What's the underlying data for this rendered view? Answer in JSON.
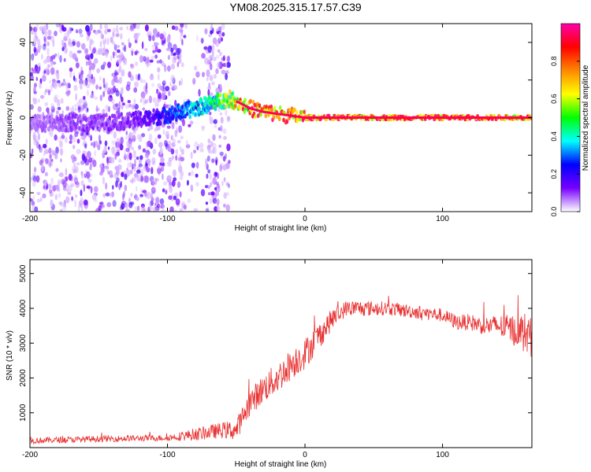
{
  "figure": {
    "title": "YM08.2025.315.17.57.C39"
  },
  "chart_data": [
    {
      "type": "heatmap",
      "xlabel": "Height of straight line (km)",
      "ylabel": "Frequency (Hz)",
      "xlim": [
        -200,
        165
      ],
      "ylim": [
        -50,
        50
      ],
      "xticks": [
        -200,
        -100,
        0,
        100
      ],
      "yticks": [
        -40,
        -20,
        0,
        20,
        40
      ],
      "grid": false,
      "colorbar": {
        "label": "Normalized spectral amplitude",
        "range": [
          0,
          1
        ],
        "ticks": [
          "0.0",
          "0.2",
          "0.4",
          "0.6",
          "0.8"
        ],
        "colors": [
          "#ffffff",
          "#7700ff",
          "#0000ff",
          "#00ffff",
          "#00ff00",
          "#ffff00",
          "#ff8800",
          "#ff0000",
          "#ff00aa"
        ]
      },
      "ridge": {
        "x": [
          -200,
          -160,
          -130,
          -110,
          -90,
          -75,
          -62,
          -55,
          -48,
          -40,
          -30,
          -20,
          -10,
          0,
          50,
          100,
          150,
          165
        ],
        "y": [
          -3,
          -3,
          -2,
          0,
          3,
          6,
          9,
          10,
          8,
          5,
          3,
          2,
          1,
          0,
          0,
          0,
          0,
          0
        ],
        "amplitude": [
          0.08,
          0.12,
          0.12,
          0.2,
          0.35,
          0.45,
          0.55,
          0.7,
          0.85,
          0.9,
          0.92,
          0.92,
          0.92,
          0.95,
          0.95,
          0.95,
          0.95,
          0.9
        ]
      },
      "noise_band": {
        "x_from": -200,
        "x_to": -55
      }
    },
    {
      "type": "line",
      "xlabel": "Height of straight line (km)",
      "ylabel": "SNR (10 * v/v)",
      "xlim": [
        -200,
        165
      ],
      "ylim": [
        0,
        5400
      ],
      "xticks": [
        -200,
        -100,
        0,
        100
      ],
      "yticks": [
        1000,
        2000,
        3000,
        4000,
        5000
      ],
      "grid": false,
      "color": "#e83030",
      "series": [
        {
          "x": [
            -200,
            -150,
            -100,
            -80,
            -60,
            -50,
            -40,
            -30,
            -20,
            -10,
            0,
            10,
            20,
            30,
            40,
            60,
            80,
            100,
            110,
            120,
            130,
            140,
            150,
            160,
            165
          ],
          "y": [
            200,
            250,
            280,
            380,
            500,
            500,
            1300,
            1700,
            2000,
            2400,
            2700,
            3200,
            3700,
            4000,
            4000,
            4000,
            3900,
            3800,
            3600,
            3600,
            3500,
            3500,
            3400,
            3300,
            3100
          ],
          "noise": [
            90,
            90,
            90,
            180,
            230,
            300,
            380,
            420,
            450,
            450,
            450,
            400,
            300,
            230,
            230,
            200,
            200,
            200,
            220,
            240,
            260,
            320,
            420,
            600,
            600
          ]
        }
      ]
    }
  ]
}
